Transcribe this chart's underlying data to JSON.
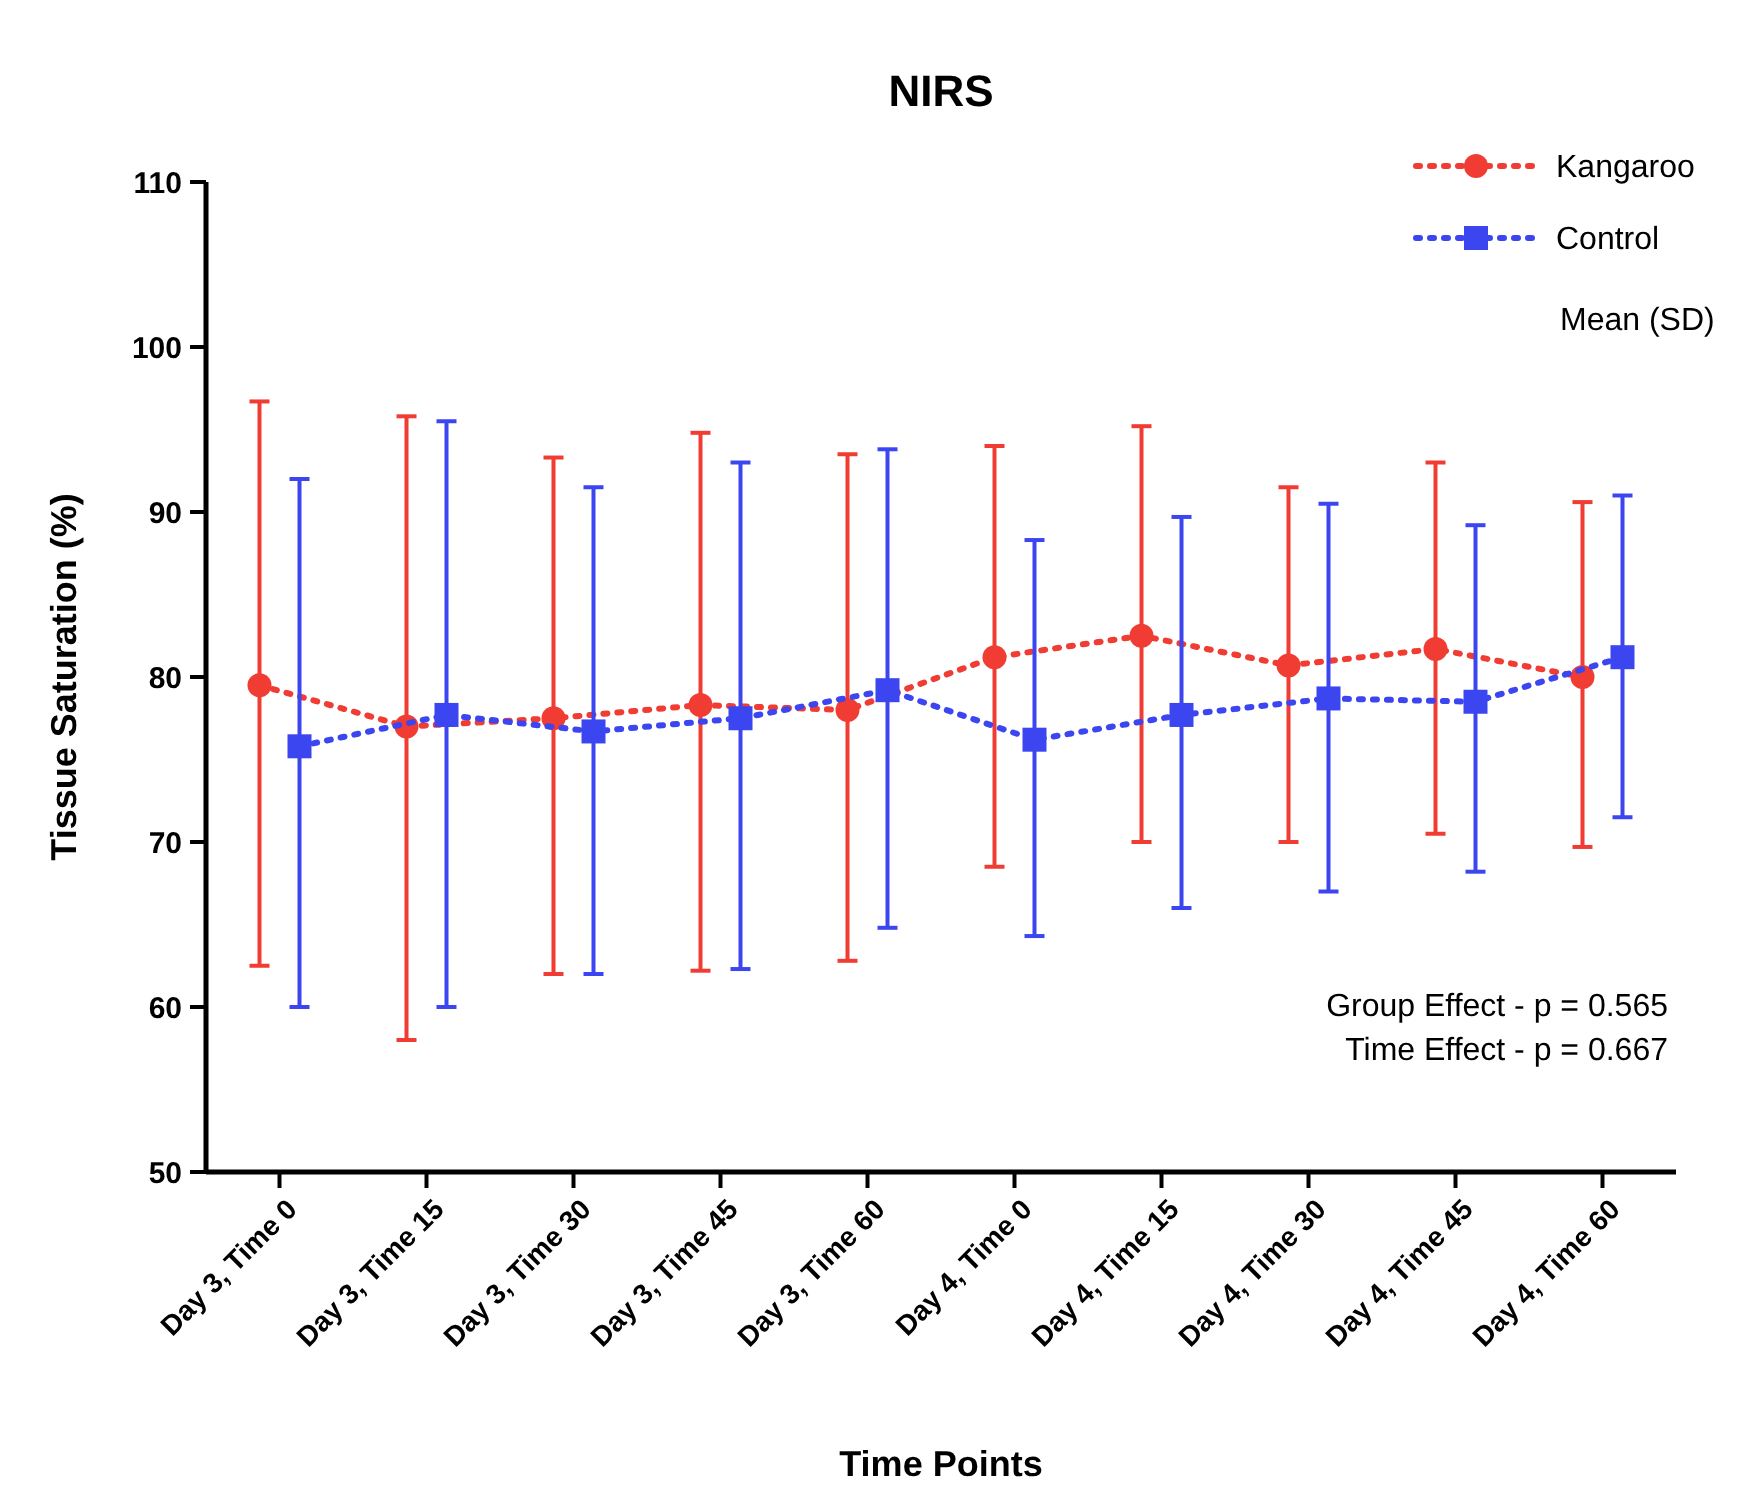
{
  "chart_data": {
    "type": "line",
    "title": "NIRS",
    "xlabel": "Time  Points",
    "ylabel": "Tissue Saturation (%)",
    "categories": [
      "Day 3, Time 0",
      "Day 3, Time 15",
      "Day 3, Time 30",
      "Day 3, Time 45",
      "Day 3, Time 60",
      "Day 4, Time 0",
      "Day 4, Time 15",
      "Day 4, Time 30",
      "Day 4, Time 45",
      "Day 4, Time 60"
    ],
    "series": [
      {
        "name": "Kangaroo",
        "color": "#f03c32",
        "marker": "circle",
        "values": [
          79.5,
          77,
          77.5,
          78.3,
          78,
          81.2,
          82.5,
          80.7,
          81.7,
          80
        ],
        "errors": [
          [
            62.5,
            96.7
          ],
          [
            58,
            95.8
          ],
          [
            62,
            93.3
          ],
          [
            62.2,
            94.8
          ],
          [
            62.8,
            93.5
          ],
          [
            68.5,
            94
          ],
          [
            70,
            95.2
          ],
          [
            70,
            91.5
          ],
          [
            70.5,
            93
          ],
          [
            69.7,
            90.6
          ]
        ]
      },
      {
        "name": "Control",
        "color": "#3c46f0",
        "marker": "square",
        "values": [
          75.8,
          77.7,
          76.7,
          77.5,
          79.2,
          76.2,
          77.7,
          78.7,
          78.5,
          81.2
        ],
        "errors": [
          [
            60,
            92
          ],
          [
            60,
            95.5
          ],
          [
            62,
            91.5
          ],
          [
            62.3,
            93
          ],
          [
            64.8,
            93.8
          ],
          [
            64.3,
            88.3
          ],
          [
            66,
            89.7
          ],
          [
            67,
            90.5
          ],
          [
            68.2,
            89.2
          ],
          [
            71.5,
            91
          ]
        ]
      }
    ],
    "ylim": [
      50,
      110
    ],
    "yticks": [
      50,
      60,
      70,
      80,
      90,
      100,
      110
    ],
    "grid": false,
    "legend": "top right",
    "line_style": "dotted",
    "annotations": [
      "Mean (SD)",
      "Group Effect -  p = 0.565",
      "Time Effect   -  p = 0.667"
    ]
  }
}
